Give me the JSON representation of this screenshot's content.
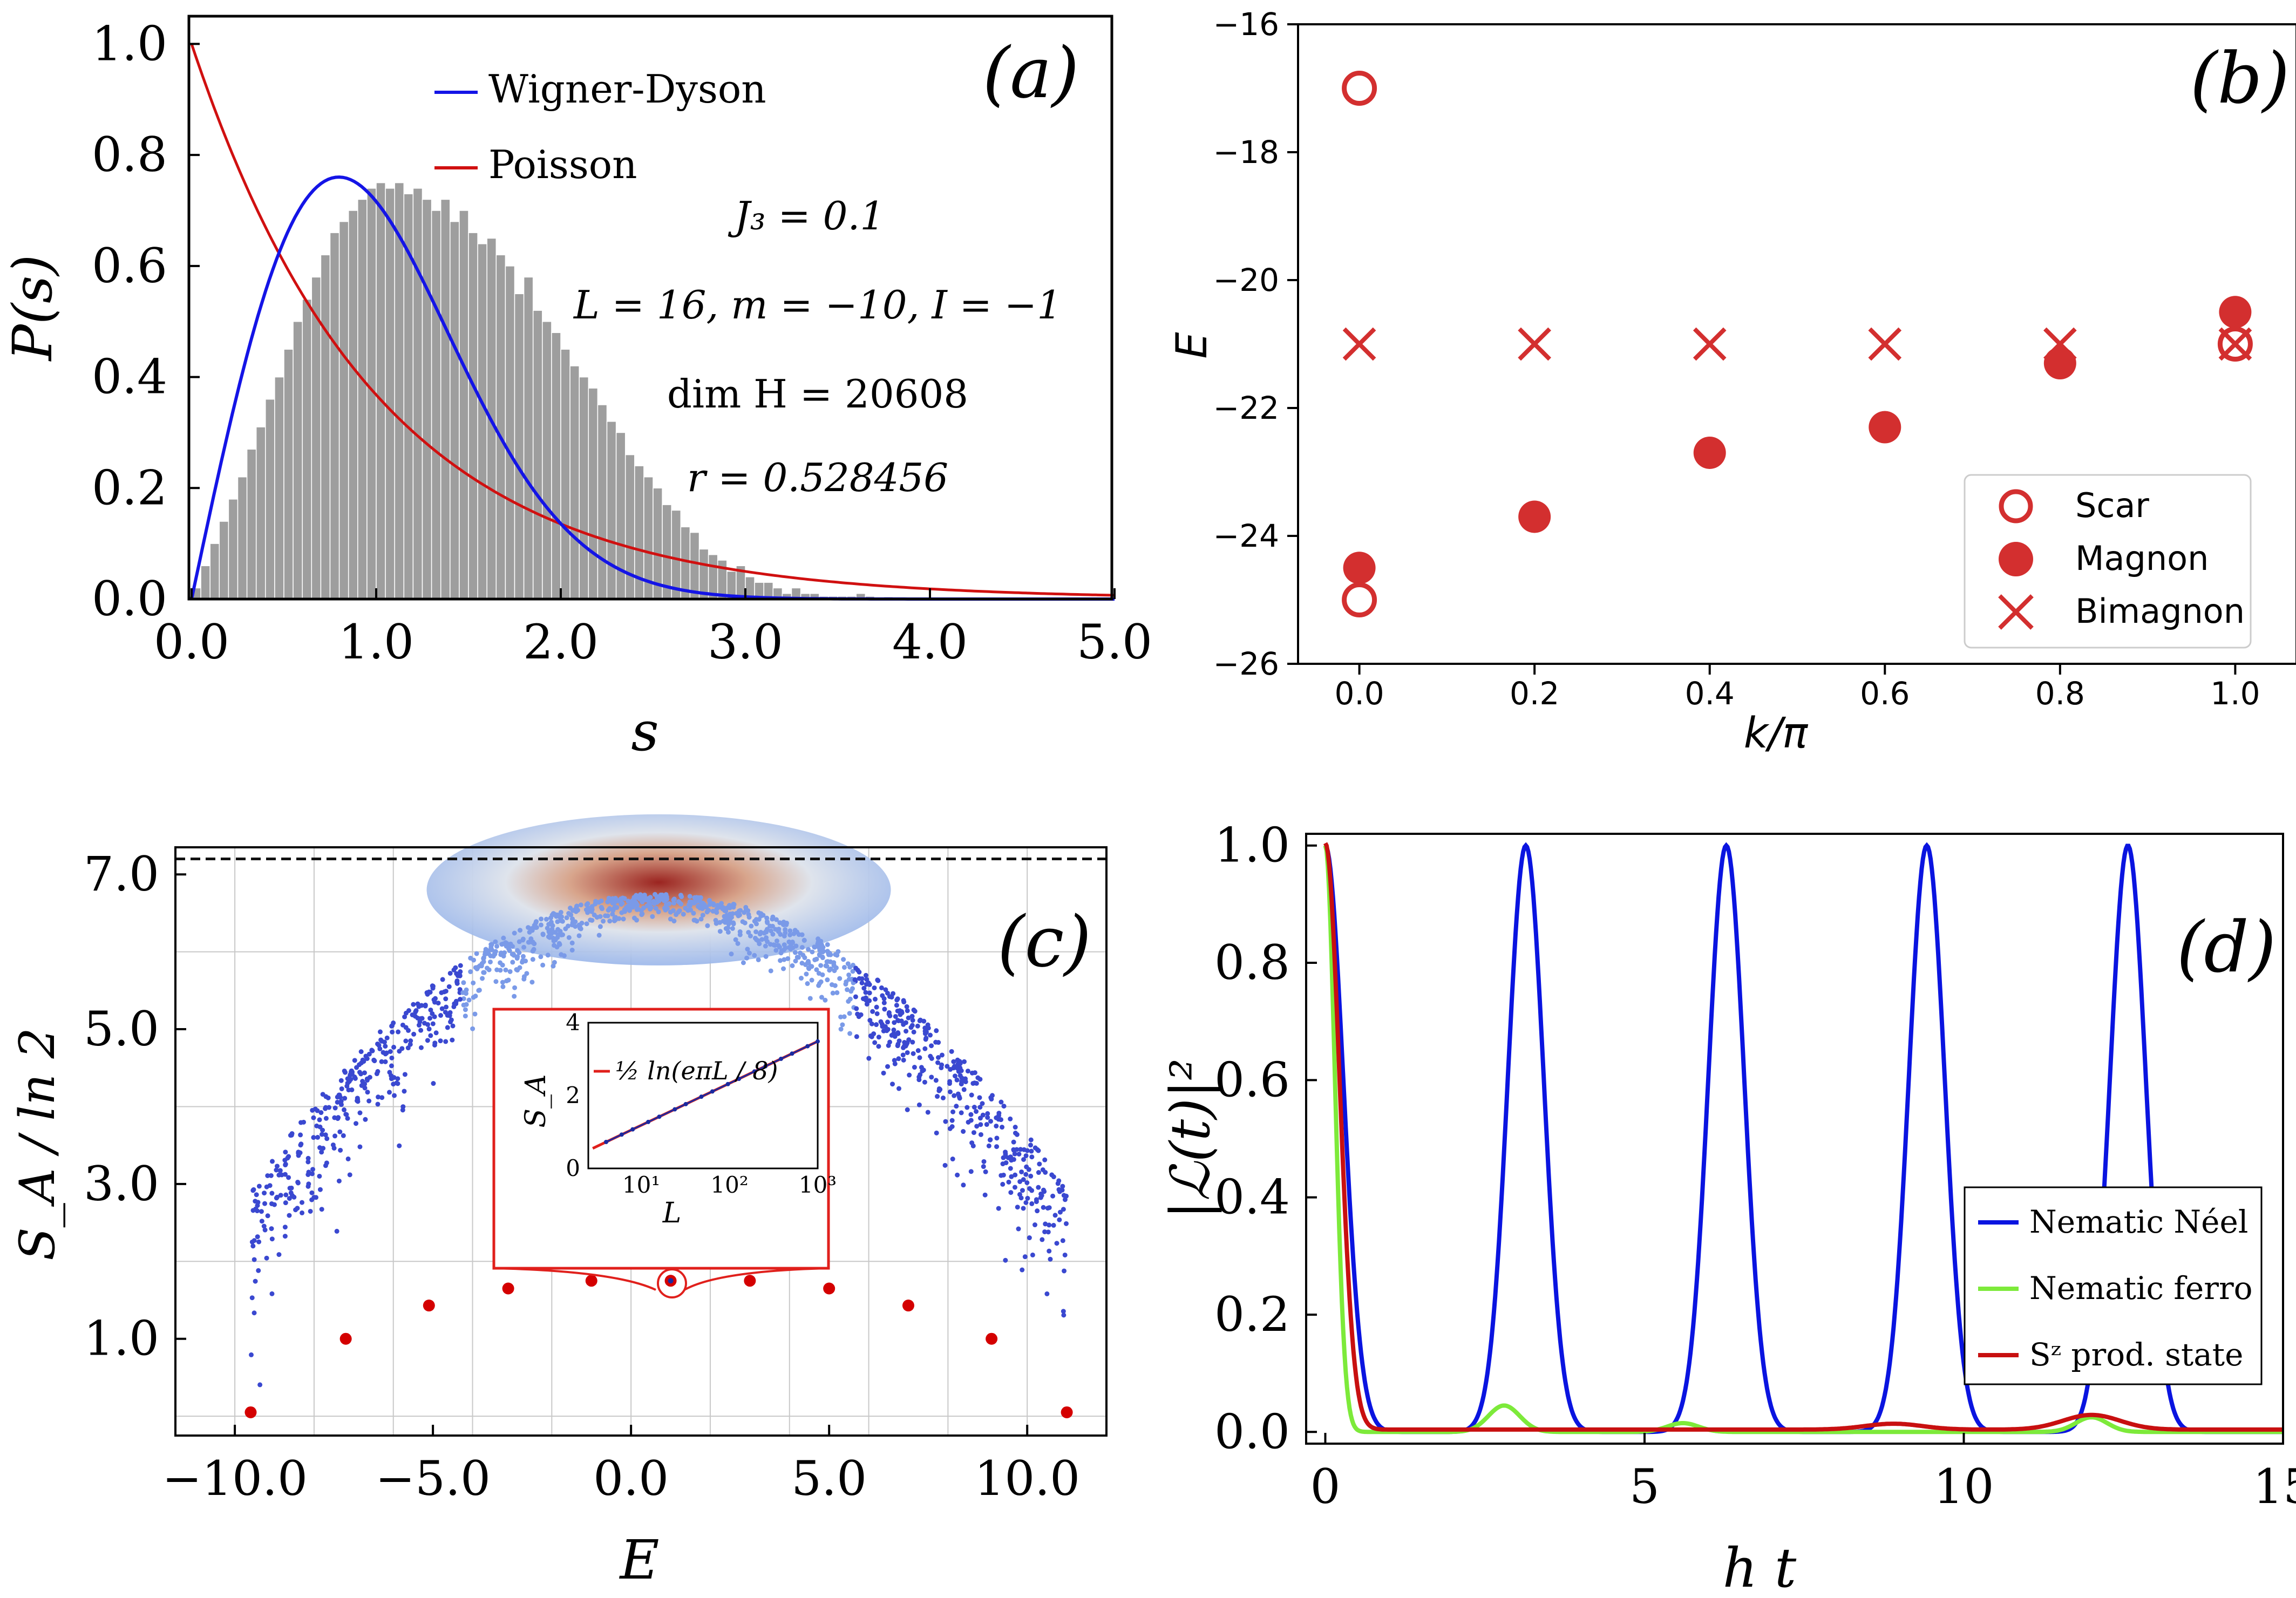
{
  "colors": {
    "wigner": "#1414e6",
    "poisson": "#d01010",
    "hist": "#9e9e9e",
    "levels": "#4a5ef0",
    "marker": "#d32f2f",
    "neel": "#0a14e0",
    "ferro": "#7dea3a",
    "sz": "#c81010",
    "dot_red": "#d40000",
    "dashed": "#111111"
  },
  "chart_data": [
    {
      "id": "a",
      "type": "bar",
      "panel_label": "(a)",
      "xlabel": "s",
      "ylabel": "P(s)",
      "xlim": [
        0,
        5
      ],
      "ylim": [
        0,
        1.05
      ],
      "xticks": [
        "0.0",
        "1.0",
        "2.0",
        "3.0",
        "4.0",
        "5.0"
      ],
      "yticks": [
        "0.0",
        "0.2",
        "0.4",
        "0.6",
        "0.8",
        "1.0"
      ],
      "legend": [
        "Wigner-Dyson",
        "Poisson"
      ],
      "annotations": [
        "J₃ = 0.1",
        "L = 16,  m = −10,  I = −1",
        "dim H = 20608",
        "r = 0.528456"
      ],
      "histogram": {
        "bin_width": 0.05,
        "values": [
          0.02,
          0.06,
          0.1,
          0.14,
          0.18,
          0.22,
          0.27,
          0.31,
          0.36,
          0.4,
          0.45,
          0.5,
          0.54,
          0.58,
          0.62,
          0.66,
          0.68,
          0.7,
          0.72,
          0.74,
          0.75,
          0.74,
          0.75,
          0.73,
          0.74,
          0.72,
          0.7,
          0.72,
          0.68,
          0.7,
          0.66,
          0.64,
          0.65,
          0.62,
          0.6,
          0.55,
          0.58,
          0.52,
          0.5,
          0.48,
          0.45,
          0.42,
          0.4,
          0.38,
          0.35,
          0.32,
          0.3,
          0.26,
          0.24,
          0.22,
          0.2,
          0.17,
          0.16,
          0.13,
          0.12,
          0.09,
          0.08,
          0.07,
          0.05,
          0.06,
          0.04,
          0.03,
          0.03,
          0.02,
          0.01,
          0.02,
          0.01,
          0.01,
          0.005,
          0.005,
          0.005,
          0.005,
          0.01,
          0.005,
          0.003,
          0.004,
          0.003,
          0.002,
          0.002,
          0.001,
          0.001,
          0.001,
          0.001,
          0,
          0,
          0.002,
          0,
          0,
          0,
          0,
          0,
          0,
          0,
          0,
          0,
          0,
          0,
          0,
          0,
          0
        ]
      },
      "curves": [
        {
          "name": "Wigner-Dyson",
          "formula": "(pi/2) s exp(-pi s^2 / 4)"
        },
        {
          "name": "Poisson",
          "formula": "exp(-s)"
        }
      ]
    },
    {
      "id": "b",
      "type": "scatter",
      "panel_label": "(b)",
      "xlabel": "k/π",
      "ylabel": "E",
      "xlim": [
        -0.07,
        1.07
      ],
      "ylim": [
        -26,
        -16
      ],
      "xticks": [
        "0.0",
        "0.2",
        "0.4",
        "0.6",
        "0.8",
        "1.0"
      ],
      "yticks": [
        "−16",
        "−18",
        "−20",
        "−22",
        "−24",
        "−26"
      ],
      "legend": [
        "Scar",
        "Magnon",
        "Bimagnon"
      ],
      "k_values": [
        0.0,
        0.2,
        0.4,
        0.6,
        0.8,
        1.0
      ],
      "lowest_levels": [
        -25.0,
        -23.7,
        -22.7,
        -22.3,
        -21.3,
        -21.0
      ],
      "scar": [
        {
          "k": 0.0,
          "E": -17.0
        },
        {
          "k": 0.0,
          "E": -25.0
        },
        {
          "k": 1.0,
          "E": -21.0
        }
      ],
      "magnon": [
        {
          "k": 0.0,
          "E": -24.5
        },
        {
          "k": 0.2,
          "E": -23.7
        },
        {
          "k": 0.4,
          "E": -22.7
        },
        {
          "k": 0.6,
          "E": -22.3
        },
        {
          "k": 0.8,
          "E": -21.3
        },
        {
          "k": 1.0,
          "E": -20.5
        }
      ],
      "bimagnon": [
        {
          "k": 0.0,
          "E": -21.0
        },
        {
          "k": 0.2,
          "E": -21.0
        },
        {
          "k": 0.4,
          "E": -21.0
        },
        {
          "k": 0.6,
          "E": -21.0
        },
        {
          "k": 0.8,
          "E": -21.0
        },
        {
          "k": 1.0,
          "E": -21.0
        }
      ]
    },
    {
      "id": "c",
      "type": "scatter",
      "panel_label": "(c)",
      "xlabel": "E",
      "ylabel": "S_A / ln 2",
      "xlim": [
        -11.5,
        12
      ],
      "ylim": [
        -0.25,
        7.35
      ],
      "xticks": [
        "−10.0",
        "−5.0",
        "0.0",
        "5.0",
        "10.0"
      ],
      "yticks": [
        "1.0",
        "3.0",
        "5.0",
        "7.0"
      ],
      "page_curve_max": 7.2,
      "tower_states": [
        {
          "E": -9.6,
          "S": 0.05
        },
        {
          "E": -7.2,
          "S": 1.0
        },
        {
          "E": -5.1,
          "S": 1.43
        },
        {
          "E": -3.1,
          "S": 1.65
        },
        {
          "E": -1.0,
          "S": 1.75
        },
        {
          "E": 1.0,
          "S": 1.75
        },
        {
          "E": 3.0,
          "S": 1.75
        },
        {
          "E": 5.0,
          "S": 1.65
        },
        {
          "E": 7.0,
          "S": 1.43
        },
        {
          "E": 9.1,
          "S": 1.0
        },
        {
          "E": 11.0,
          "S": 0.05
        }
      ],
      "inset": {
        "xlabel": "L",
        "ylabel": "S_A",
        "xticks": [
          "10¹",
          "10²",
          "10³"
        ],
        "yticks": [
          "0",
          "2",
          "4"
        ],
        "legend": "½ ln(eπL / 8)",
        "points_L": [
          4,
          6,
          8,
          12,
          16,
          24,
          32,
          48,
          64,
          96,
          128,
          192,
          256,
          384,
          512,
          768,
          1000
        ]
      }
    },
    {
      "id": "d",
      "type": "line",
      "panel_label": "(d)",
      "xlabel": "h t",
      "ylabel": "|ℒ(t)|²",
      "xlim": [
        -0.3,
        15
      ],
      "ylim": [
        -0.02,
        1.02
      ],
      "xticks": [
        "0",
        "5",
        "10",
        "15"
      ],
      "yticks": [
        "0.0",
        "0.2",
        "0.4",
        "0.6",
        "0.8",
        "1.0"
      ],
      "series": [
        {
          "name": "Nematic Néel",
          "revival_times": [
            0,
            3.14,
            6.28,
            9.42,
            12.57
          ],
          "peak_width": 0.28
        },
        {
          "name": "Nematic ferro",
          "decay_width": 0.15,
          "bumps": [
            {
              "t": 2.8,
              "h": 0.045
            },
            {
              "t": 5.6,
              "h": 0.015
            },
            {
              "t": 12.0,
              "h": 0.025
            }
          ]
        },
        {
          "name": "Sᶻ prod. state",
          "decay_width": 0.22,
          "bumps": [
            {
              "t": 12.0,
              "h": 0.025
            },
            {
              "t": 8.9,
              "h": 0.01
            }
          ]
        }
      ]
    }
  ]
}
